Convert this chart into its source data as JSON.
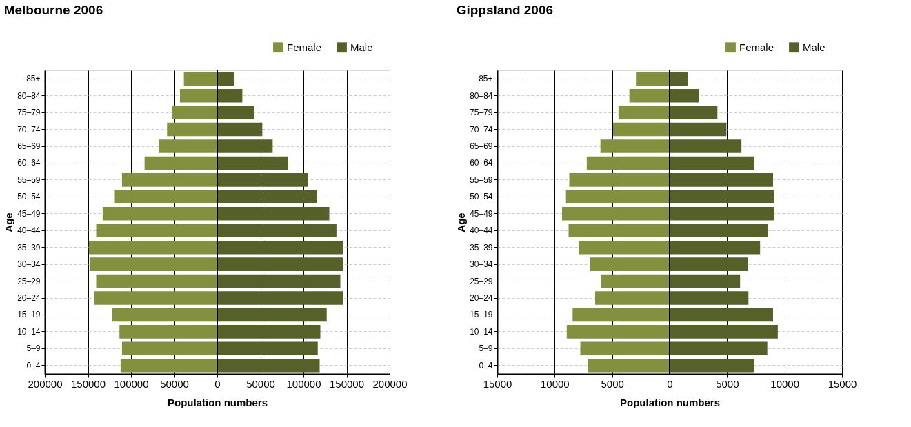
{
  "chart_data": [
    {
      "type": "bar",
      "orientation": "horizontal",
      "title": "Melbourne 2006",
      "xlabel": "Population numbers",
      "ylabel": "Age",
      "categories": [
        "85+",
        "80–84",
        "75–79",
        "70–74",
        "65–69",
        "60–64",
        "55–59",
        "50–54",
        "45–49",
        "40–44",
        "35–39",
        "30–34",
        "25–29",
        "20–24",
        "15–19",
        "10–14",
        "5–9",
        "0–4"
      ],
      "series": [
        {
          "name": "Female",
          "color": "#83903d",
          "values": [
            -38700,
            -43200,
            -52800,
            -58200,
            -67800,
            -84300,
            -110500,
            -118800,
            -132900,
            -140400,
            -148900,
            -148100,
            -140400,
            -142500,
            -121700,
            -113400,
            -110500,
            -112100
          ]
        },
        {
          "name": "Male",
          "color": "#566029",
          "values": [
            19500,
            29100,
            43200,
            52300,
            64300,
            82200,
            105400,
            115800,
            130000,
            138300,
            145700,
            145700,
            142800,
            145700,
            127000,
            119600,
            116600,
            118800
          ]
        }
      ],
      "xlim": [
        -200000,
        200000
      ],
      "xticks": [
        {
          "value": -200000,
          "label": "200000"
        },
        {
          "value": -150000,
          "label": "150000"
        },
        {
          "value": -100000,
          "label": "100000"
        },
        {
          "value": -50000,
          "label": "50000"
        },
        0,
        50000,
        100000,
        150000,
        200000
      ],
      "grid": true,
      "legend": "top right",
      "stacked": true
    },
    {
      "type": "bar",
      "orientation": "horizontal",
      "title": "Gippsland 2006",
      "xlabel": "Population numbers",
      "ylabel": "Age",
      "categories": [
        "85+",
        "80–84",
        "75–79",
        "70–74",
        "65–69",
        "60–64",
        "55–59",
        "50–54",
        "45–49",
        "40–44",
        "35–39",
        "30–34",
        "25–29",
        "20–24",
        "15–19",
        "10–14",
        "5–9",
        "0–4"
      ],
      "series": [
        {
          "name": "Female",
          "color": "#83903d",
          "values": [
            -2930,
            -3500,
            -4450,
            -4920,
            -6020,
            -7210,
            -8730,
            -9020,
            -9360,
            -8790,
            -7890,
            -6950,
            -5960,
            -6480,
            -8440,
            -8950,
            -7770,
            -7110
          ]
        },
        {
          "name": "Male",
          "color": "#566029",
          "values": [
            1560,
            2520,
            4160,
            4940,
            6250,
            7380,
            9000,
            9060,
            9120,
            8550,
            7870,
            6800,
            6130,
            6860,
            9000,
            9410,
            8500,
            7380
          ]
        }
      ],
      "xlim": [
        -15000,
        15000
      ],
      "xticks": [
        {
          "value": -15000,
          "label": "15000"
        },
        {
          "value": -10000,
          "label": "10000"
        },
        {
          "value": -5000,
          "label": "5000"
        },
        0,
        5000,
        10000,
        15000
      ],
      "grid": true,
      "legend": "top right",
      "stacked": true
    }
  ]
}
